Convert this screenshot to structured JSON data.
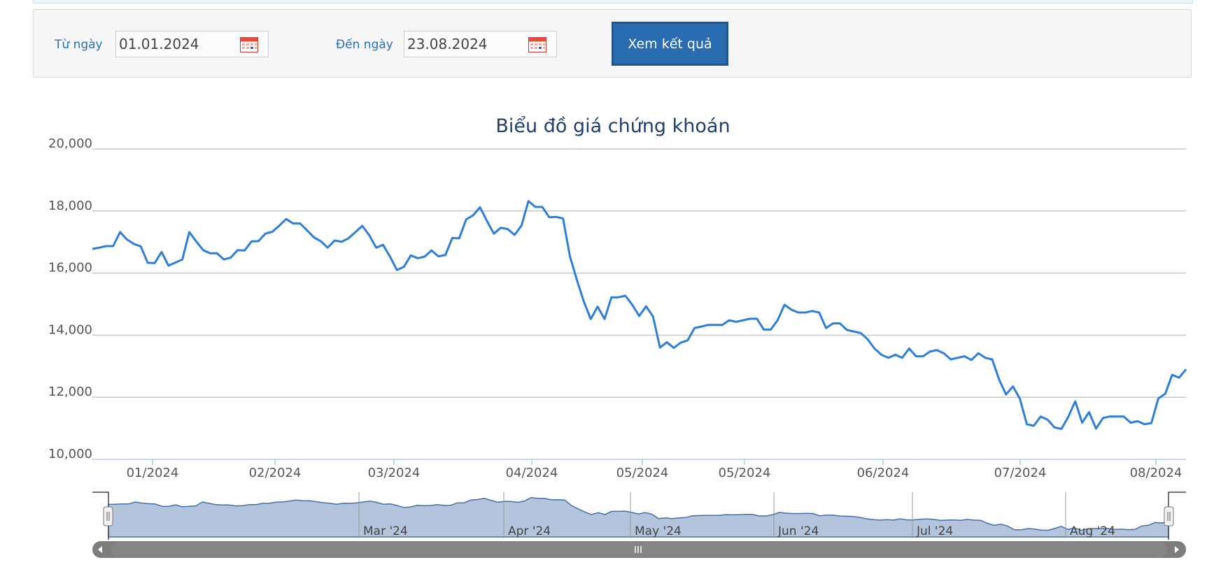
{
  "filter": {
    "from_label": "Từ ngày",
    "from_value": "01.01.2024",
    "to_label": "Đến ngày",
    "to_value": "23.08.2024",
    "submit_label": "Xem kết quả",
    "calendar_icon": "calendar-icon"
  },
  "colors": {
    "line": "#2f7ed8",
    "navigator_fill": "#b3c4dc",
    "navigator_line": "#4a6fa5",
    "title": "#1f3f6e",
    "button": "#2a6cb0"
  },
  "chart_data": {
    "type": "line",
    "title": "Biểu đồ giá chứng khoán",
    "ylim": [
      10000,
      20000
    ],
    "yticks": [
      "10,000",
      "12,000",
      "14,000",
      "16,000",
      "18,000",
      "20,000"
    ],
    "xticks": [
      "01/2024",
      "02/2024",
      "03/2024",
      "04/2024",
      "05/2024",
      "05/2024",
      "06/2024",
      "07/2024",
      "08/2024"
    ],
    "grid": true,
    "series": [
      {
        "values": [
          16780,
          16820,
          16870,
          16870,
          17320,
          17080,
          16940,
          16860,
          16330,
          16320,
          16680,
          16240,
          16340,
          16440,
          17320,
          17020,
          16740,
          16640,
          16640,
          16440,
          16500,
          16740,
          16730,
          17020,
          17030,
          17270,
          17330,
          17530,
          17740,
          17600,
          17600,
          17380,
          17150,
          17030,
          16820,
          17050,
          17010,
          17120,
          17320,
          17520,
          17220,
          16820,
          16910,
          16530,
          16100,
          16200,
          16570,
          16480,
          16530,
          16730,
          16540,
          16580,
          17130,
          17120,
          17730,
          17860,
          18120,
          17680,
          17270,
          17460,
          17420,
          17230,
          17530,
          18320,
          18130,
          18130,
          17800,
          17810,
          17760,
          16530,
          15780,
          15080,
          14520,
          14920,
          14520,
          15220,
          15220,
          15270,
          14980,
          14620,
          14930,
          14600,
          13600,
          13770,
          13590,
          13760,
          13830,
          14230,
          14280,
          14330,
          14330,
          14330,
          14480,
          14430,
          14480,
          14530,
          14530,
          14180,
          14180,
          14480,
          14980,
          14820,
          14730,
          14730,
          14780,
          14730,
          14230,
          14380,
          14380,
          14170,
          14120,
          14070,
          13870,
          13570,
          13370,
          13270,
          13370,
          13270,
          13570,
          13320,
          13320,
          13470,
          13520,
          13420,
          13220,
          13270,
          13320,
          13200,
          13420,
          13270,
          13220,
          12570,
          12090,
          12350,
          11950,
          11130,
          11080,
          11380,
          11280,
          11030,
          10980,
          11370,
          11870,
          11180,
          11520,
          10990,
          11330,
          11380,
          11380,
          11380,
          11180,
          11230,
          11130,
          11170,
          11960,
          12110,
          12720,
          12630,
          12900
        ]
      }
    ],
    "navigator": {
      "labels": [
        "Mar '24",
        "Apr '24",
        "May '24",
        "Jun '24",
        "Jul '24",
        "Aug '24"
      ]
    }
  }
}
